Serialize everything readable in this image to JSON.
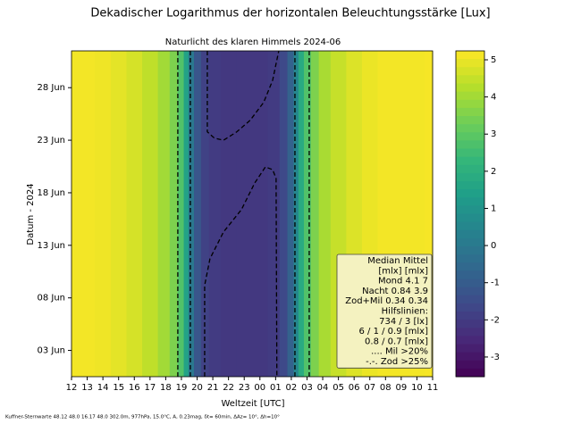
{
  "chart_data": {
    "type": "contour-band",
    "title": "Dekadischer Logarithmus der horizontalen Beleuchtungsstärke [Lux]",
    "subtitle": "Naturlicht des klaren Himmels 2024-06",
    "x_label": "Weltzeit [UTC]",
    "y_label": "Datum - 2024",
    "footer": "Kuffner-Sternwarte 48.12 48.0 16.17 48.0 302.0m,  977hPa, 15.0°C, A, 0.23mag, δt= 60min, ΔAz= 10°, Δh=10°",
    "colormap": "viridis",
    "x": [
      12,
      13,
      14,
      15,
      16,
      17,
      18,
      18.5,
      19,
      19.3,
      19.6,
      20,
      20.5,
      21,
      22,
      23,
      24,
      25,
      25.5,
      26,
      26.3,
      26.6,
      27,
      27.5,
      28,
      29,
      30,
      31,
      32,
      33,
      34,
      35
    ],
    "values": [
      5.1,
      5.1,
      5.05,
      4.9,
      4.7,
      4.4,
      4.0,
      3.5,
      2.8,
      1.5,
      0,
      -1.2,
      -1.8,
      -2.0,
      -2.1,
      -2.1,
      -2.1,
      -2.0,
      -1.6,
      -0.8,
      0.5,
      1.8,
      2.8,
      3.5,
      4.1,
      4.5,
      4.8,
      5.0,
      5.1,
      5.1,
      5.1,
      5.15
    ],
    "contours": [
      {
        "x": [
          18.77,
          18.77
        ],
        "y": [
          0.5,
          31.5
        ]
      },
      {
        "x": [
          19.57,
          19.57
        ],
        "y": [
          0.5,
          31.5
        ]
      },
      {
        "x": [
          26.23,
          26.23
        ],
        "y": [
          0.5,
          31.5
        ]
      },
      {
        "x": [
          27.14,
          27.14
        ],
        "y": [
          0.5,
          31.5
        ]
      },
      {
        "x": [
          20.65,
          20.65,
          21.1,
          21.68,
          22.53,
          23.38,
          24.24,
          24.81,
          25.2
        ],
        "y": [
          31.5,
          23.8,
          23.2,
          23.0,
          23.8,
          24.9,
          26.6,
          28.7,
          31.5
        ]
      },
      {
        "x": [
          20.48,
          20.48,
          20.82,
          21.68,
          22.82,
          23.67,
          24.35,
          24.81,
          25.03,
          25.08
        ],
        "y": [
          0.5,
          9.19,
          11.73,
          14.27,
          16.39,
          18.93,
          20.46,
          20.2,
          19.36,
          0.5
        ]
      }
    ],
    "xlim": [
      12,
      35
    ],
    "xticks": [
      12,
      13,
      14,
      15,
      16,
      17,
      18,
      19,
      20,
      21,
      22,
      23,
      {
        "value": 24,
        "label": "00"
      },
      {
        "value": 25,
        "label": "01"
      },
      {
        "value": 26,
        "label": "02"
      },
      {
        "value": 27,
        "label": "03"
      },
      {
        "value": 28,
        "label": "04"
      },
      {
        "value": 29,
        "label": "05"
      },
      {
        "value": 30,
        "label": "06"
      },
      {
        "value": 31,
        "label": "07"
      },
      {
        "value": 32,
        "label": "08"
      },
      {
        "value": 33,
        "label": "09"
      },
      {
        "value": 34,
        "label": "10"
      },
      {
        "value": 35,
        "label": "11"
      }
    ],
    "ylim": [
      0.5,
      31.5
    ],
    "yticks": [
      {
        "value": 3,
        "label": "03 Jun"
      },
      {
        "value": 8,
        "label": "08 Jun"
      },
      {
        "value": 13,
        "label": "13 Jun"
      },
      {
        "value": 18,
        "label": "18 Jun"
      },
      {
        "value": 23,
        "label": "23 Jun"
      },
      {
        "value": 28,
        "label": "28 Jun"
      }
    ],
    "clim": [
      -3.53,
      5.24
    ],
    "cticks": [
      -3,
      -2,
      -1,
      0,
      1,
      2,
      3,
      4,
      5
    ],
    "annotation_lines": [
      "Median Mittel",
      "[mlx]  [mlx]",
      "Mond  4.1    7",
      "Nacht 0.84 3.9",
      "Zod+Mil 0.34  0.34",
      "Hilfslinien:",
      "734 / 3  [lx]",
      "6 /  1 / 0.9 [mlx]",
      "0.8 / 0.7 [mlx]",
      ".... Mil >20%",
      "-.-. Zod >25%"
    ]
  }
}
